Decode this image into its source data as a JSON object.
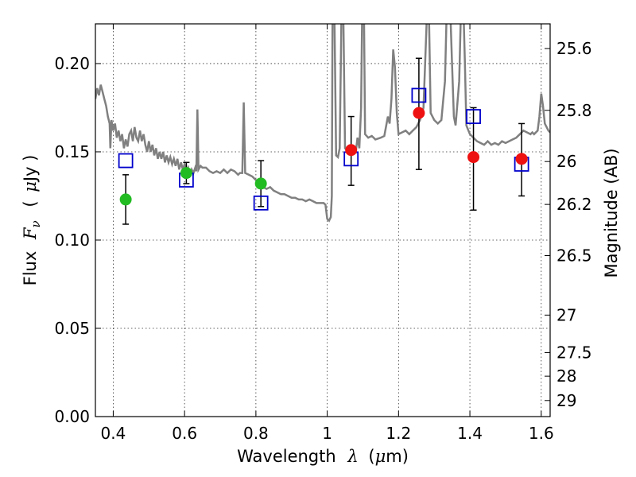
{
  "chart_data": {
    "type": "scatter",
    "xlabel_parts": [
      "Wavelength",
      "λ",
      "(",
      "μ",
      "m)"
    ],
    "ylabel_parts": [
      "Flux",
      "F",
      "ν",
      "(",
      "μ",
      "Jy )"
    ],
    "y2label": "Magnitude (AB)",
    "xlim": [
      0.35,
      1.625
    ],
    "ylim": [
      0.0,
      0.2225
    ],
    "grid": true,
    "x_ticks": [
      0.4,
      0.6,
      0.8,
      1.0,
      1.2,
      1.4,
      1.6
    ],
    "x_tick_labels": [
      "0.4",
      "0.6",
      "0.8",
      "1",
      "1.2",
      "1.4",
      "1.6"
    ],
    "y_ticks": [
      0.0,
      0.05,
      0.1,
      0.15,
      0.2
    ],
    "y_tick_labels": [
      "0.00",
      "0.05",
      "0.10",
      "0.15",
      "0.20"
    ],
    "y2_ticks": [
      {
        "label": "25.6",
        "flux": 0.2085
      },
      {
        "label": "25.8",
        "flux": 0.1735
      },
      {
        "label": "26",
        "flux": 0.1445
      },
      {
        "label": "26.2",
        "flux": 0.1202
      },
      {
        "label": "26.5",
        "flux": 0.0912
      },
      {
        "label": "27",
        "flux": 0.0575
      },
      {
        "label": "27.5",
        "flux": 0.0363
      },
      {
        "label": "28",
        "flux": 0.0229
      },
      {
        "label": "29",
        "flux": 0.0091
      }
    ],
    "colors": {
      "sed": "#808080",
      "green": "#22bb22",
      "red": "#ee1111",
      "box": "#0000cc",
      "errorbar": "#000000"
    },
    "sed_model": [
      [
        0.35,
        0.18
      ],
      [
        0.355,
        0.186
      ],
      [
        0.36,
        0.182
      ],
      [
        0.365,
        0.188
      ],
      [
        0.37,
        0.184
      ],
      [
        0.375,
        0.18
      ],
      [
        0.38,
        0.176
      ],
      [
        0.385,
        0.17
      ],
      [
        0.39,
        0.166
      ],
      [
        0.392,
        0.152
      ],
      [
        0.395,
        0.168
      ],
      [
        0.4,
        0.162
      ],
      [
        0.405,
        0.166
      ],
      [
        0.41,
        0.158
      ],
      [
        0.415,
        0.162
      ],
      [
        0.42,
        0.156
      ],
      [
        0.425,
        0.16
      ],
      [
        0.43,
        0.152
      ],
      [
        0.435,
        0.157
      ],
      [
        0.44,
        0.153
      ],
      [
        0.445,
        0.16
      ],
      [
        0.45,
        0.162
      ],
      [
        0.455,
        0.156
      ],
      [
        0.46,
        0.164
      ],
      [
        0.465,
        0.158
      ],
      [
        0.47,
        0.156
      ],
      [
        0.475,
        0.162
      ],
      [
        0.48,
        0.156
      ],
      [
        0.485,
        0.16
      ],
      [
        0.49,
        0.154
      ],
      [
        0.495,
        0.15
      ],
      [
        0.5,
        0.156
      ],
      [
        0.505,
        0.15
      ],
      [
        0.51,
        0.154
      ],
      [
        0.515,
        0.148
      ],
      [
        0.52,
        0.152
      ],
      [
        0.525,
        0.146
      ],
      [
        0.53,
        0.15
      ],
      [
        0.535,
        0.146
      ],
      [
        0.54,
        0.15
      ],
      [
        0.545,
        0.144
      ],
      [
        0.55,
        0.148
      ],
      [
        0.555,
        0.144
      ],
      [
        0.56,
        0.147
      ],
      [
        0.565,
        0.143
      ],
      [
        0.57,
        0.146
      ],
      [
        0.575,
        0.142
      ],
      [
        0.58,
        0.146
      ],
      [
        0.585,
        0.14
      ],
      [
        0.59,
        0.144
      ],
      [
        0.595,
        0.14
      ],
      [
        0.6,
        0.143
      ],
      [
        0.605,
        0.139
      ],
      [
        0.61,
        0.141
      ],
      [
        0.615,
        0.137
      ],
      [
        0.62,
        0.14
      ],
      [
        0.625,
        0.138
      ],
      [
        0.63,
        0.141
      ],
      [
        0.633,
        0.139
      ],
      [
        0.636,
        0.174
      ],
      [
        0.639,
        0.14
      ],
      [
        0.645,
        0.142
      ],
      [
        0.65,
        0.141
      ],
      [
        0.66,
        0.141
      ],
      [
        0.67,
        0.139
      ],
      [
        0.68,
        0.138
      ],
      [
        0.69,
        0.139
      ],
      [
        0.7,
        0.138
      ],
      [
        0.71,
        0.14
      ],
      [
        0.72,
        0.138
      ],
      [
        0.73,
        0.14
      ],
      [
        0.74,
        0.139
      ],
      [
        0.75,
        0.137
      ],
      [
        0.755,
        0.138
      ],
      [
        0.762,
        0.138
      ],
      [
        0.766,
        0.178
      ],
      [
        0.77,
        0.138
      ],
      [
        0.78,
        0.137
      ],
      [
        0.79,
        0.136
      ],
      [
        0.8,
        0.134
      ],
      [
        0.81,
        0.132
      ],
      [
        0.82,
        0.13
      ],
      [
        0.83,
        0.129
      ],
      [
        0.84,
        0.13
      ],
      [
        0.85,
        0.128
      ],
      [
        0.86,
        0.127
      ],
      [
        0.87,
        0.126
      ],
      [
        0.88,
        0.126
      ],
      [
        0.89,
        0.125
      ],
      [
        0.9,
        0.124
      ],
      [
        0.91,
        0.124
      ],
      [
        0.92,
        0.123
      ],
      [
        0.93,
        0.123
      ],
      [
        0.94,
        0.122
      ],
      [
        0.95,
        0.123
      ],
      [
        0.96,
        0.122
      ],
      [
        0.97,
        0.121
      ],
      [
        0.98,
        0.121
      ],
      [
        0.99,
        0.121
      ],
      [
        0.995,
        0.12
      ],
      [
        1.0,
        0.112
      ],
      [
        1.005,
        0.111
      ],
      [
        1.01,
        0.113
      ],
      [
        1.013,
        0.125
      ],
      [
        1.015,
        0.23
      ],
      [
        1.02,
        0.23
      ],
      [
        1.025,
        0.148
      ],
      [
        1.03,
        0.147
      ],
      [
        1.035,
        0.152
      ],
      [
        1.04,
        0.23
      ],
      [
        1.045,
        0.23
      ],
      [
        1.05,
        0.152
      ],
      [
        1.06,
        0.15
      ],
      [
        1.07,
        0.152
      ],
      [
        1.08,
        0.15
      ],
      [
        1.085,
        0.158
      ],
      [
        1.09,
        0.152
      ],
      [
        1.095,
        0.175
      ],
      [
        1.098,
        0.23
      ],
      [
        1.103,
        0.23
      ],
      [
        1.106,
        0.16
      ],
      [
        1.115,
        0.158
      ],
      [
        1.125,
        0.159
      ],
      [
        1.135,
        0.157
      ],
      [
        1.15,
        0.158
      ],
      [
        1.16,
        0.159
      ],
      [
        1.17,
        0.17
      ],
      [
        1.175,
        0.166
      ],
      [
        1.18,
        0.18
      ],
      [
        1.185,
        0.208
      ],
      [
        1.19,
        0.198
      ],
      [
        1.195,
        0.172
      ],
      [
        1.2,
        0.16
      ],
      [
        1.21,
        0.161
      ],
      [
        1.22,
        0.162
      ],
      [
        1.23,
        0.16
      ],
      [
        1.24,
        0.162
      ],
      [
        1.25,
        0.164
      ],
      [
        1.26,
        0.168
      ],
      [
        1.27,
        0.175
      ],
      [
        1.28,
        0.23
      ],
      [
        1.285,
        0.23
      ],
      [
        1.29,
        0.172
      ],
      [
        1.3,
        0.168
      ],
      [
        1.31,
        0.166
      ],
      [
        1.32,
        0.168
      ],
      [
        1.33,
        0.19
      ],
      [
        1.335,
        0.23
      ],
      [
        1.345,
        0.23
      ],
      [
        1.35,
        0.2
      ],
      [
        1.355,
        0.17
      ],
      [
        1.36,
        0.165
      ],
      [
        1.37,
        0.19
      ],
      [
        1.375,
        0.23
      ],
      [
        1.382,
        0.23
      ],
      [
        1.386,
        0.2
      ],
      [
        1.39,
        0.165
      ],
      [
        1.4,
        0.16
      ],
      [
        1.41,
        0.158
      ],
      [
        1.42,
        0.156
      ],
      [
        1.43,
        0.155
      ],
      [
        1.44,
        0.154
      ],
      [
        1.45,
        0.156
      ],
      [
        1.46,
        0.154
      ],
      [
        1.47,
        0.155
      ],
      [
        1.48,
        0.154
      ],
      [
        1.49,
        0.156
      ],
      [
        1.5,
        0.155
      ],
      [
        1.51,
        0.156
      ],
      [
        1.52,
        0.157
      ],
      [
        1.53,
        0.158
      ],
      [
        1.54,
        0.16
      ],
      [
        1.55,
        0.162
      ],
      [
        1.56,
        0.161
      ],
      [
        1.57,
        0.16
      ],
      [
        1.575,
        0.161
      ],
      [
        1.58,
        0.16
      ],
      [
        1.59,
        0.162
      ],
      [
        1.595,
        0.17
      ],
      [
        1.6,
        0.183
      ],
      [
        1.605,
        0.176
      ],
      [
        1.61,
        0.166
      ],
      [
        1.62,
        0.162
      ],
      [
        1.625,
        0.161
      ]
    ],
    "observed": [
      {
        "x": 0.435,
        "y": 0.123,
        "yerr_low": 0.109,
        "yerr_high": 0.137,
        "color": "green"
      },
      {
        "x": 0.605,
        "y": 0.138,
        "yerr_low": 0.132,
        "yerr_high": 0.144,
        "color": "green"
      },
      {
        "x": 0.814,
        "y": 0.132,
        "yerr_low": 0.119,
        "yerr_high": 0.145,
        "color": "green"
      },
      {
        "x": 1.067,
        "y": 0.151,
        "yerr_low": 0.131,
        "yerr_high": 0.17,
        "color": "red"
      },
      {
        "x": 1.257,
        "y": 0.172,
        "yerr_low": 0.14,
        "yerr_high": 0.203,
        "color": "red"
      },
      {
        "x": 1.41,
        "y": 0.147,
        "yerr_low": 0.117,
        "yerr_high": 0.175,
        "color": "red"
      },
      {
        "x": 1.545,
        "y": 0.146,
        "yerr_low": 0.125,
        "yerr_high": 0.166,
        "color": "red"
      }
    ],
    "model_photometry": [
      {
        "x": 0.435,
        "y": 0.145
      },
      {
        "x": 0.605,
        "y": 0.134
      },
      {
        "x": 0.814,
        "y": 0.121
      },
      {
        "x": 1.067,
        "y": 0.146
      },
      {
        "x": 1.257,
        "y": 0.182
      },
      {
        "x": 1.41,
        "y": 0.17
      },
      {
        "x": 1.545,
        "y": 0.143
      }
    ]
  }
}
